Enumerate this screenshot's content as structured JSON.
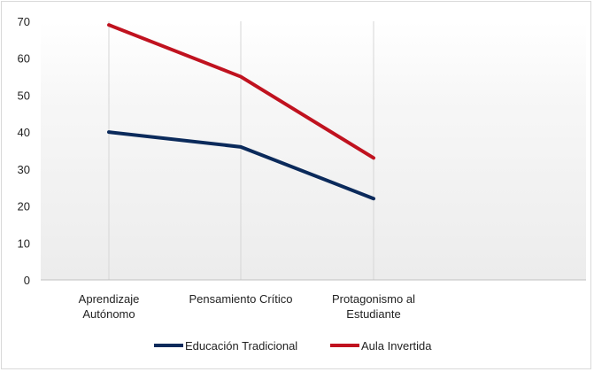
{
  "chart_data": {
    "type": "line",
    "title": "",
    "xlabel": "",
    "ylabel": "",
    "categories": [
      [
        "Aprendizaje",
        "Autónomo"
      ],
      [
        "Pensamiento  Crítico"
      ],
      [
        "Protagonismo  al",
        "Estudiante"
      ]
    ],
    "series": [
      {
        "name": "Educación Tradicional",
        "values": [
          40,
          36,
          22
        ],
        "color": "#0b2a5b"
      },
      {
        "name": "Aula Invertida",
        "values": [
          69,
          55,
          33
        ],
        "color": "#c0121f"
      }
    ],
    "ylim": [
      0,
      70
    ],
    "yticks": [
      0,
      10,
      20,
      30,
      40,
      50,
      60,
      70
    ],
    "legend_position": "bottom",
    "grid": "vertical-category-lines"
  }
}
